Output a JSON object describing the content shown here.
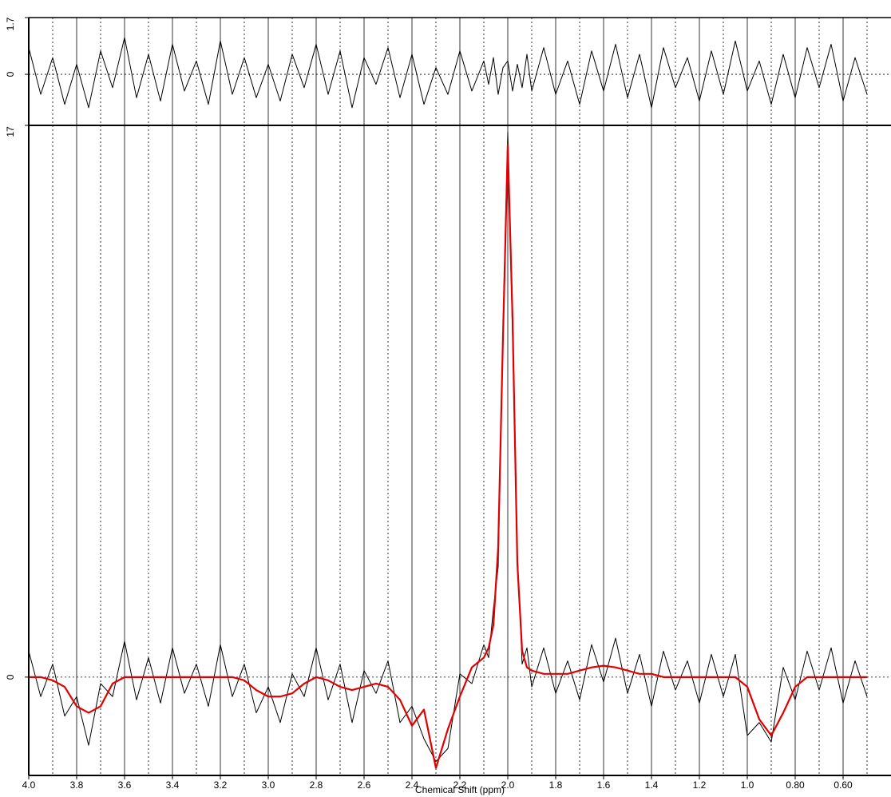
{
  "chart_data": [
    {
      "type": "line",
      "xlim": [
        4.0,
        0.4
      ],
      "ylim": [
        -1.53,
        1.7
      ],
      "yticks": [
        0,
        1.7
      ],
      "x": [
        4.0,
        3.95,
        3.9,
        3.85,
        3.8,
        3.75,
        3.7,
        3.65,
        3.6,
        3.55,
        3.5,
        3.45,
        3.4,
        3.35,
        3.3,
        3.25,
        3.2,
        3.15,
        3.1,
        3.05,
        3.0,
        2.95,
        2.9,
        2.85,
        2.8,
        2.75,
        2.7,
        2.65,
        2.6,
        2.55,
        2.5,
        2.45,
        2.4,
        2.35,
        2.3,
        2.25,
        2.2,
        2.15,
        2.1,
        2.08,
        2.06,
        2.04,
        2.02,
        2.0,
        1.98,
        1.96,
        1.94,
        1.92,
        1.9,
        1.85,
        1.8,
        1.75,
        1.7,
        1.65,
        1.6,
        1.55,
        1.5,
        1.45,
        1.4,
        1.35,
        1.3,
        1.25,
        1.2,
        1.15,
        1.1,
        1.05,
        1.0,
        0.95,
        0.9,
        0.85,
        0.8,
        0.75,
        0.7,
        0.65,
        0.6,
        0.55,
        0.5
      ],
      "series": [
        {
          "color": "#000000",
          "values": [
            0.8,
            -0.6,
            0.5,
            -0.9,
            0.3,
            -1.0,
            0.7,
            -0.4,
            1.1,
            -0.7,
            0.6,
            -0.8,
            0.9,
            -0.5,
            0.4,
            -0.9,
            1.0,
            -0.6,
            0.5,
            -0.7,
            0.3,
            -0.8,
            0.6,
            -0.4,
            0.9,
            -0.6,
            0.7,
            -1.0,
            0.5,
            -0.3,
            0.8,
            -0.7,
            0.6,
            -0.9,
            0.2,
            -0.6,
            0.7,
            -0.5,
            0.4,
            -0.3,
            0.5,
            -0.6,
            0.2,
            0.4,
            -0.5,
            0.3,
            -0.4,
            0.6,
            -0.5,
            0.8,
            -0.6,
            0.4,
            -0.9,
            0.7,
            -0.5,
            0.9,
            -0.7,
            0.6,
            -1.0,
            0.8,
            -0.4,
            0.5,
            -0.8,
            0.7,
            -0.6,
            1.0,
            -0.5,
            0.4,
            -0.9,
            0.6,
            -0.7,
            0.8,
            -0.4,
            0.9,
            -0.8,
            0.5,
            -0.6
          ]
        }
      ]
    },
    {
      "type": "line",
      "x_label": "Chemical Shift (ppm)",
      "xlim": [
        4.0,
        0.4
      ],
      "ylim": [
        -3.03,
        17
      ],
      "yticks": [
        0,
        17
      ],
      "xticks": [
        {
          "value": 4.0,
          "label": "4.0"
        },
        3.8,
        3.6,
        3.4,
        3.2,
        {
          "value": 3.0,
          "label": "3.0"
        },
        2.8,
        2.6,
        2.4,
        2.2,
        {
          "value": 2.0,
          "label": "2.0"
        },
        1.8,
        1.6,
        1.4,
        1.2,
        {
          "value": 1.0,
          "label": "1.0"
        },
        {
          "value": 0.8,
          "label": "0.80"
        },
        {
          "value": 0.6,
          "label": "0.60"
        }
      ],
      "minor_xticks": [
        3.9,
        3.7,
        3.5,
        3.3,
        3.1,
        2.9,
        2.7,
        2.5,
        2.3,
        2.1,
        1.9,
        1.7,
        1.5,
        1.3,
        1.1,
        0.9,
        0.7,
        0.5
      ],
      "x": [
        4.0,
        3.95,
        3.9,
        3.85,
        3.8,
        3.75,
        3.7,
        3.65,
        3.6,
        3.55,
        3.5,
        3.45,
        3.4,
        3.35,
        3.3,
        3.25,
        3.2,
        3.15,
        3.1,
        3.05,
        3.0,
        2.95,
        2.9,
        2.85,
        2.8,
        2.75,
        2.7,
        2.65,
        2.6,
        2.55,
        2.5,
        2.45,
        2.4,
        2.35,
        2.3,
        2.25,
        2.2,
        2.15,
        2.1,
        2.08,
        2.06,
        2.04,
        2.02,
        2.0,
        1.98,
        1.96,
        1.94,
        1.92,
        1.9,
        1.85,
        1.8,
        1.75,
        1.7,
        1.65,
        1.6,
        1.55,
        1.5,
        1.45,
        1.4,
        1.35,
        1.3,
        1.25,
        1.2,
        1.15,
        1.1,
        1.05,
        1.0,
        0.95,
        0.9,
        0.85,
        0.8,
        0.75,
        0.7,
        0.65,
        0.6,
        0.55,
        0.5
      ],
      "series": [
        {
          "color": "#000000",
          "values": [
            0.8,
            -0.6,
            0.4,
            -1.2,
            -0.6,
            -2.1,
            -0.2,
            -0.6,
            1.1,
            -0.7,
            0.6,
            -0.8,
            0.9,
            -0.5,
            0.4,
            -0.9,
            1.0,
            -0.6,
            0.4,
            -1.1,
            -0.3,
            -1.4,
            0.1,
            -0.6,
            0.9,
            -0.7,
            0.4,
            -1.4,
            0.2,
            -0.5,
            0.5,
            -1.4,
            -0.9,
            -1.9,
            -2.6,
            -2.2,
            0.1,
            -0.2,
            1.0,
            0.6,
            2.1,
            3.4,
            10.7,
            16.8,
            10.5,
            3.8,
            0.4,
            0.9,
            -0.3,
            0.9,
            -0.5,
            0.5,
            -0.7,
            1.0,
            -0.15,
            1.2,
            -0.5,
            0.7,
            -0.9,
            0.8,
            -0.4,
            0.5,
            -0.8,
            0.7,
            -0.6,
            0.7,
            -1.8,
            -1.4,
            -2.0,
            0.3,
            -0.7,
            0.8,
            -0.4,
            0.9,
            -0.8,
            0.5,
            -0.6
          ]
        },
        {
          "color": "#e00000",
          "values": [
            0.0,
            0.0,
            -0.1,
            -0.3,
            -0.9,
            -1.1,
            -0.9,
            -0.2,
            0.0,
            0.0,
            0.0,
            0.0,
            0.0,
            0.0,
            0.0,
            0.0,
            0.0,
            0.0,
            -0.1,
            -0.4,
            -0.6,
            -0.6,
            -0.5,
            -0.2,
            0.0,
            -0.1,
            -0.3,
            -0.4,
            -0.3,
            -0.2,
            -0.3,
            -0.7,
            -1.5,
            -1.0,
            -2.8,
            -1.6,
            -0.6,
            0.3,
            0.6,
            0.9,
            1.6,
            4.0,
            10.5,
            16.4,
            11.0,
            3.5,
            0.8,
            0.3,
            0.2,
            0.1,
            0.1,
            0.1,
            0.2,
            0.3,
            0.35,
            0.3,
            0.2,
            0.1,
            0.1,
            0.0,
            0.0,
            0.0,
            0.0,
            0.0,
            0.0,
            0.0,
            -0.3,
            -1.3,
            -1.8,
            -1.1,
            -0.3,
            0.0,
            0.0,
            0.0,
            0.0,
            0.0,
            0.0
          ]
        }
      ]
    }
  ]
}
